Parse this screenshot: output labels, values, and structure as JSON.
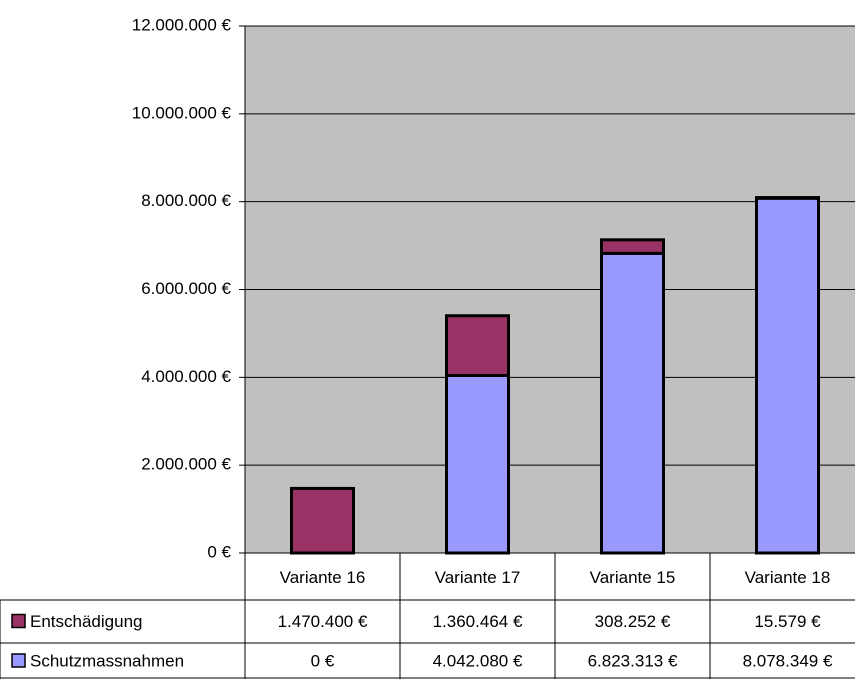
{
  "chart_data": {
    "type": "stacked_bar",
    "categories": [
      "Variante 16",
      "Variante 17",
      "Variante 15",
      "Variante 18"
    ],
    "series": [
      {
        "name": "Entschädigung",
        "color": "#993366",
        "values": [
          1470400,
          1360464,
          308252,
          15579
        ],
        "value_labels": [
          "1.470.400 €",
          "1.360.464 €",
          "308.252 €",
          "15.579 €"
        ]
      },
      {
        "name": "Schutzmassnahmen",
        "color": "#9999ff",
        "values": [
          0,
          4042080,
          6823313,
          8078349
        ],
        "value_labels": [
          "0 €",
          "4.042.080 €",
          "6.823.313 €",
          "8.078.349 €"
        ]
      }
    ],
    "ylim": [
      0,
      12000000
    ],
    "yticks": [
      {
        "value": 0,
        "label": "0 €"
      },
      {
        "value": 2000000,
        "label": "2.000.000 €"
      },
      {
        "value": 4000000,
        "label": "4.000.000 €"
      },
      {
        "value": 6000000,
        "label": "6.000.000 €"
      },
      {
        "value": 8000000,
        "label": "8.000.000 €"
      },
      {
        "value": 10000000,
        "label": "10.000.000 €"
      },
      {
        "value": 12000000,
        "label": "12.000.000 €"
      }
    ],
    "grid": true,
    "plot_background": "#c0c0c0"
  }
}
